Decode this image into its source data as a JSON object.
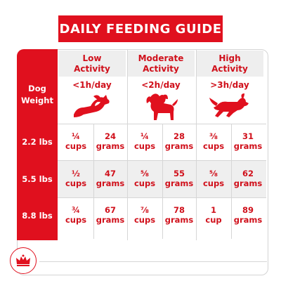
{
  "title": "DAILY FEEDING GUIDE",
  "row_header": [
    "Dog",
    "Weight"
  ],
  "activities": [
    {
      "name_line1": "Low",
      "name_line2": "Activity",
      "time": "<1h/day",
      "icon": "dog-lying-icon"
    },
    {
      "name_line1": "Moderate",
      "name_line2": "Activity",
      "time": "<2h/day",
      "icon": "dog-standing-icon"
    },
    {
      "name_line1": "High",
      "name_line2": "Activity",
      "time": ">3h/day",
      "icon": "dog-running-icon"
    }
  ],
  "rows": [
    {
      "weight": "2.2 lbs",
      "cells": [
        {
          "cups": "¼",
          "cups_unit": "cups",
          "grams": "24",
          "grams_unit": "grams"
        },
        {
          "cups": "¼",
          "cups_unit": "cups",
          "grams": "28",
          "grams_unit": "grams"
        },
        {
          "cups": "⅜",
          "cups_unit": "cups",
          "grams": "31",
          "grams_unit": "grams"
        }
      ]
    },
    {
      "weight": "5.5 lbs",
      "cells": [
        {
          "cups": "½",
          "cups_unit": "cups",
          "grams": "47",
          "grams_unit": "grams"
        },
        {
          "cups": "⅝",
          "cups_unit": "cups",
          "grams": "55",
          "grams_unit": "grams"
        },
        {
          "cups": "⅝",
          "cups_unit": "cups",
          "grams": "62",
          "grams_unit": "grams"
        }
      ]
    },
    {
      "weight": "8.8 lbs",
      "cells": [
        {
          "cups": "¾",
          "cups_unit": "cups",
          "grams": "67",
          "grams_unit": "grams"
        },
        {
          "cups": "⅞",
          "cups_unit": "cups",
          "grams": "78",
          "grams_unit": "grams"
        },
        {
          "cups": "1",
          "cups_unit": "cup",
          "grams": "89",
          "grams_unit": "grams"
        }
      ]
    }
  ],
  "colors": {
    "brand_red": "#e0101e",
    "text_red": "#d0101b",
    "header_gray": "#eeeeee"
  },
  "logo": "royal-canin-crown-logo"
}
